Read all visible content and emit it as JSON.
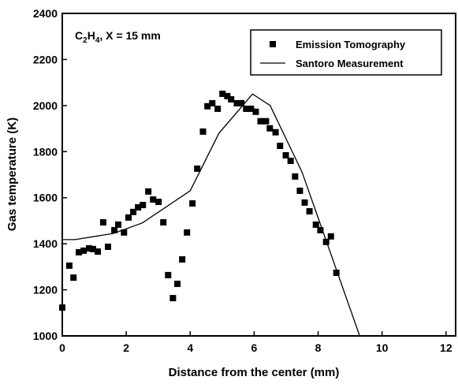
{
  "chart_data": {
    "type": "scatter-line",
    "annotation": "C2H4, X = 15 mm",
    "x_label": "Distance from the center (mm)",
    "y_label": "Gas temperature (K)",
    "xlim": [
      0,
      12.3
    ],
    "ylim": [
      1000,
      2400
    ],
    "xticks": [
      0,
      2,
      4,
      6,
      8,
      10,
      12
    ],
    "yticks": [
      1000,
      1200,
      1400,
      1600,
      1800,
      2000,
      2200,
      2400
    ],
    "legend": "upper right",
    "series": [
      {
        "name": "Emission Tomography",
        "kind": "scatter",
        "color": "#000000",
        "x": [
          0,
          0.22,
          0.35,
          0.52,
          0.67,
          0.84,
          0.96,
          1.11,
          1.28,
          1.43,
          1.63,
          1.75,
          1.93,
          2.07,
          2.22,
          2.37,
          2.52,
          2.69,
          2.84,
          3.01,
          3.16,
          3.31,
          3.46,
          3.6,
          3.75,
          3.9,
          4.07,
          4.22,
          4.4,
          4.54,
          4.69,
          4.86,
          5.01,
          5.16,
          5.28,
          5.46,
          5.6,
          5.75,
          5.9,
          6.05,
          6.2,
          6.37,
          6.49,
          6.67,
          6.81,
          6.99,
          7.14,
          7.28,
          7.43,
          7.58,
          7.73,
          7.93,
          8.07,
          8.25,
          8.4,
          8.57
        ],
        "values": [
          1123,
          1305,
          1253,
          1363,
          1370,
          1380,
          1377,
          1366,
          1493,
          1387,
          1459,
          1483,
          1449,
          1514,
          1538,
          1558,
          1568,
          1627,
          1592,
          1582,
          1493,
          1264,
          1164,
          1226,
          1332,
          1449,
          1575,
          1726,
          1887,
          1997,
          2010,
          1986,
          2051,
          2041,
          2027,
          2010,
          2010,
          1986,
          1986,
          1973,
          1932,
          1932,
          1901,
          1884,
          1825,
          1784,
          1760,
          1692,
          1630,
          1579,
          1541,
          1483,
          1459,
          1408,
          1432,
          1274
        ]
      },
      {
        "name": "Santoro Measurement",
        "kind": "line",
        "color": "#000000",
        "x": [
          0,
          0.4,
          1.6,
          2.5,
          4.0,
          4.9,
          5.95,
          6.5,
          7.5,
          9.3
        ],
        "values": [
          1418,
          1418,
          1445,
          1490,
          1630,
          1880,
          2050,
          2000,
          1710,
          1000
        ]
      }
    ]
  }
}
